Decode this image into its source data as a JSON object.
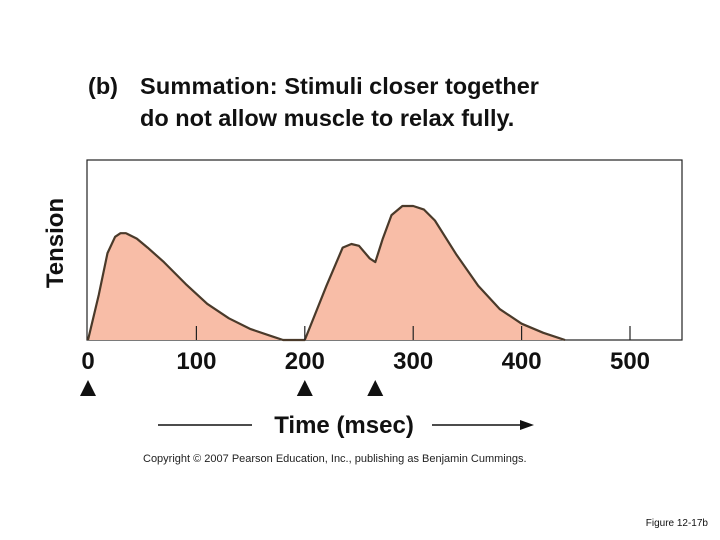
{
  "header": {
    "label": "(b)",
    "bold": "Summation:",
    "rest_line1": "Stimuli closer together",
    "line2": "do not allow muscle to relax fully."
  },
  "chart_data": {
    "type": "area",
    "ylabel": "Tension",
    "xlabel": "Time (msec)",
    "xlim": [
      0,
      550
    ],
    "ylim": [
      0,
      100
    ],
    "x_ticks": [
      0,
      100,
      200,
      300,
      400,
      500
    ],
    "x_tick_labels": [
      "0",
      "100",
      "200",
      "300",
      "400",
      "500"
    ],
    "stimuli": [
      0,
      200,
      265
    ],
    "series": [
      {
        "x": [
          0,
          10,
          18,
          25,
          30,
          35,
          45,
          55,
          70,
          90,
          110,
          130,
          150,
          170,
          180,
          200,
          220,
          235,
          243,
          250,
          260,
          265,
          272,
          280,
          290,
          300,
          310,
          320,
          340,
          360,
          380,
          400,
          420,
          435,
          440
        ],
        "values": [
          0,
          25,
          48,
          57,
          59,
          59,
          56,
          51,
          43,
          31,
          20,
          12,
          6,
          2,
          0,
          0,
          30,
          51,
          53,
          52,
          45,
          43,
          56,
          69,
          74,
          74,
          72,
          66,
          47,
          30,
          17,
          9,
          4,
          1,
          0
        ]
      }
    ],
    "fill_color": "#f8bda7",
    "line_color": "#4a3a2a",
    "grid": false
  },
  "footer": {
    "copyright": "Copyright © 2007 Pearson Education, Inc., publishing as Benjamin Cummings.",
    "figure": "Figure 12-17b"
  }
}
